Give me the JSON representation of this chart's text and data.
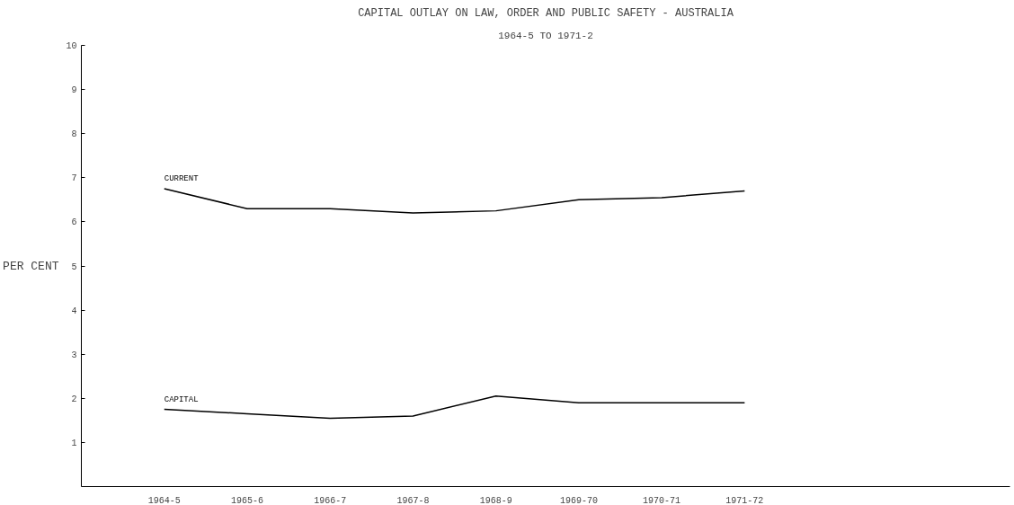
{
  "chart_data": {
    "type": "line",
    "title": "CAPITAL OUTLAY ON LAW, ORDER AND PUBLIC SAFETY - AUSTRALIA",
    "subtitle": "1964-5 TO 1971-2",
    "ylabel": "PER CENT",
    "categories": [
      "1964-5",
      "1965-6",
      "1966-7",
      "1967-8",
      "1968-9",
      "1969-70",
      "1970-71",
      "1971-72"
    ],
    "series": [
      {
        "name": "CURRENT",
        "color": "#000000",
        "values": [
          6.75,
          6.3,
          6.3,
          6.2,
          6.25,
          6.5,
          6.55,
          6.7
        ]
      },
      {
        "name": "CAPITAL",
        "color": "#000000",
        "values": [
          1.75,
          1.65,
          1.55,
          1.6,
          2.05,
          1.9,
          1.9,
          1.9
        ]
      }
    ],
    "ylim": [
      0,
      10
    ],
    "yticks": [
      1,
      2,
      3,
      4,
      5,
      6,
      7,
      8,
      9,
      10
    ],
    "grid": false,
    "marker": "none",
    "line_style": "solid"
  }
}
